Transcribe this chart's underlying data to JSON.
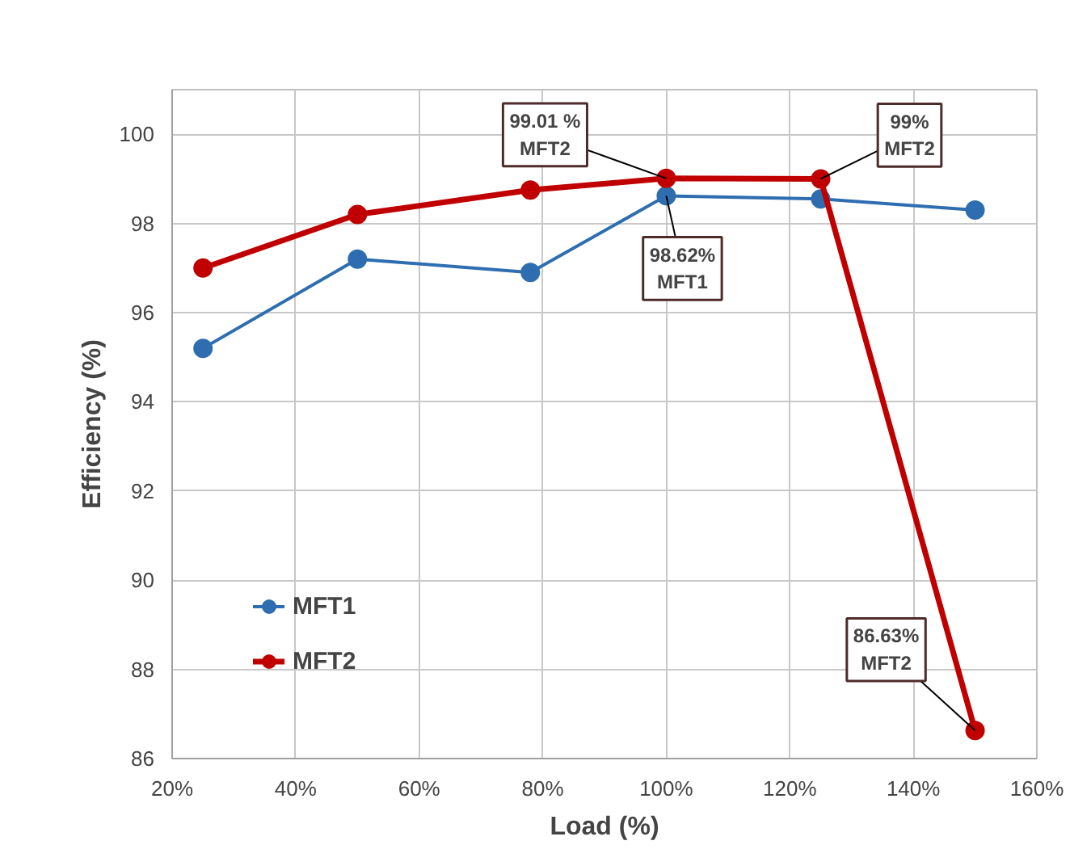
{
  "chart_data": {
    "type": "line",
    "xlabel": "Load (%)",
    "ylabel": "Efficiency (%)",
    "x": [
      25,
      50,
      78,
      100,
      125,
      150
    ],
    "series": [
      {
        "name": "MFT1",
        "color": "#2e6eb0",
        "values": [
          95.2,
          97.2,
          96.9,
          98.62,
          98.55,
          98.3
        ]
      },
      {
        "name": "MFT2",
        "color": "#c00000",
        "values": [
          97.0,
          98.2,
          98.75,
          99.01,
          99.0,
          86.63
        ]
      }
    ],
    "xlim": [
      20,
      160
    ],
    "ylim": [
      86,
      101
    ],
    "xticks": [
      {
        "value": 20,
        "label": "20%"
      },
      {
        "value": 40,
        "label": "40%"
      },
      {
        "value": 60,
        "label": "60%"
      },
      {
        "value": 80,
        "label": "80%"
      },
      {
        "value": 100,
        "label": "100%"
      },
      {
        "value": 120,
        "label": "120%"
      },
      {
        "value": 140,
        "label": "140%"
      },
      {
        "value": 160,
        "label": "160%"
      }
    ],
    "yticks": [
      86,
      88,
      90,
      92,
      94,
      96,
      98,
      100
    ],
    "annotations": [
      {
        "text": "99.01 %\nMFT2",
        "x": 100,
        "y": 99.01
      },
      {
        "text": "99%\nMFT2",
        "x": 125,
        "y": 99.0
      },
      {
        "text": "98.62%\nMFT1",
        "x": 100,
        "y": 98.62
      },
      {
        "text": "86.63%\nMFT2",
        "x": 150,
        "y": 86.63
      }
    ],
    "grid": true,
    "legend": "bottom left",
    "marker": "circle",
    "line_style": "solid"
  }
}
